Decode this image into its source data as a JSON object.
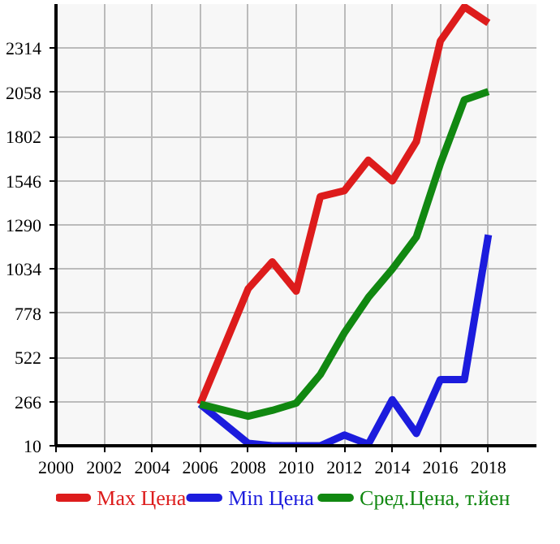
{
  "chart_data": {
    "type": "line",
    "x": [
      2006,
      2008,
      2009,
      2010,
      2011,
      2012,
      2013,
      2014,
      2015,
      2016,
      2017,
      2018
    ],
    "series": [
      {
        "name": "Max Цена",
        "color": "#dd1c1c",
        "values": [
          251,
          920,
          1076,
          906,
          1454,
          1488,
          1665,
          1545,
          1773,
          2356,
          2554,
          2461
        ]
      },
      {
        "name": "Min Цена",
        "color": "#1c1cdd",
        "values": [
          251,
          24,
          10,
          10,
          10,
          72,
          19,
          277,
          81,
          394,
          394,
          1232
        ]
      },
      {
        "name": "Сред.Цена, т.йен",
        "color": "#118811",
        "values": [
          251,
          181,
          215,
          257,
          422,
          664,
          869,
          1034,
          1220,
          1645,
          2015,
          2063
        ]
      }
    ],
    "xlim": [
      2000,
      2020
    ],
    "xticks": [
      2000,
      2002,
      2004,
      2006,
      2008,
      2010,
      2012,
      2014,
      2016,
      2018
    ],
    "ylim": [
      10,
      2570
    ],
    "yticks": [
      10,
      266,
      522,
      778,
      1034,
      1290,
      1546,
      1802,
      2058,
      2314
    ],
    "grid": true,
    "legend": "bottom",
    "marker": "none",
    "line_style": "solid"
  }
}
